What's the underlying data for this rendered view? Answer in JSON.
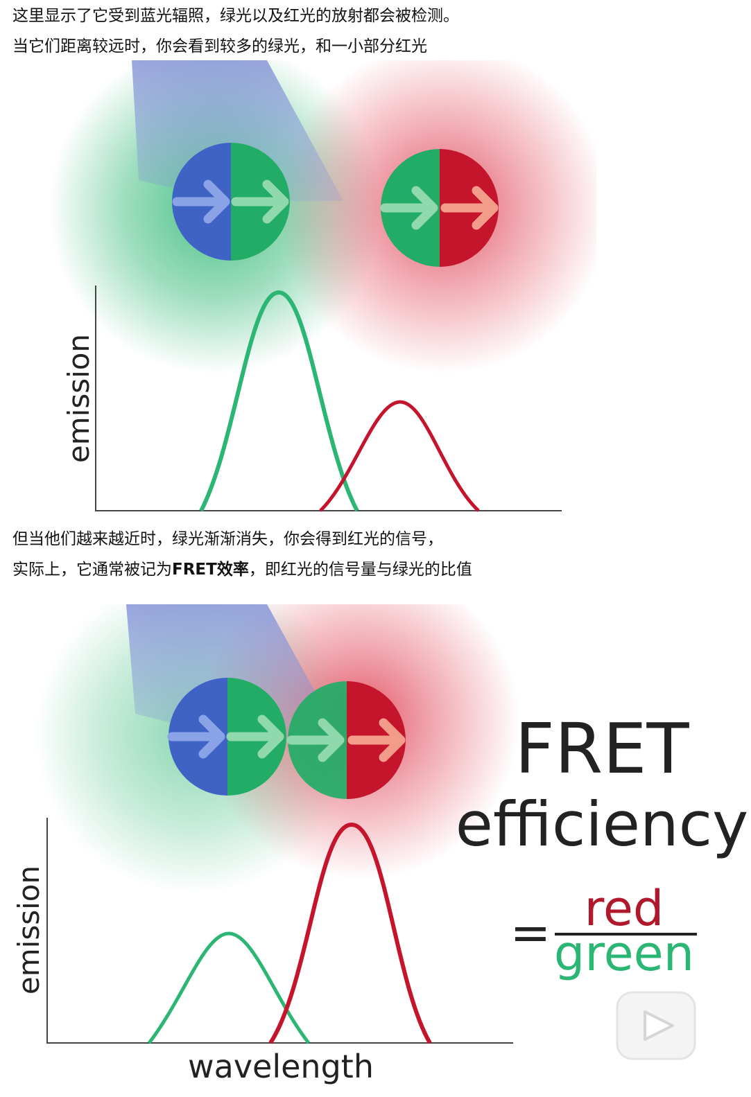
{
  "paragraph_1": {
    "lines": [
      "这里显示了它受到蓝光辐照，绿光以及红光的放射都会被检测。",
      "当它们距离较远时，你会看到较多的绿光，和一小部分红光"
    ]
  },
  "figure_1": {
    "y_label": "emission"
  },
  "paragraph_2": {
    "line_1": "但当他们越来越近时，绿光渐渐消失，你会得到红光的信号，",
    "line_2": {
      "before": "实际上，它通常被记为",
      "bold": "FRET效率",
      "after": "，即红光的信号量与绿光的比值"
    }
  },
  "figure_2": {
    "y_label": "emission",
    "x_label": "wavelength",
    "title_line_1": "FRET",
    "title_line_2": "efficiency",
    "equals": "=",
    "numerator": "red",
    "denominator": "green"
  }
}
